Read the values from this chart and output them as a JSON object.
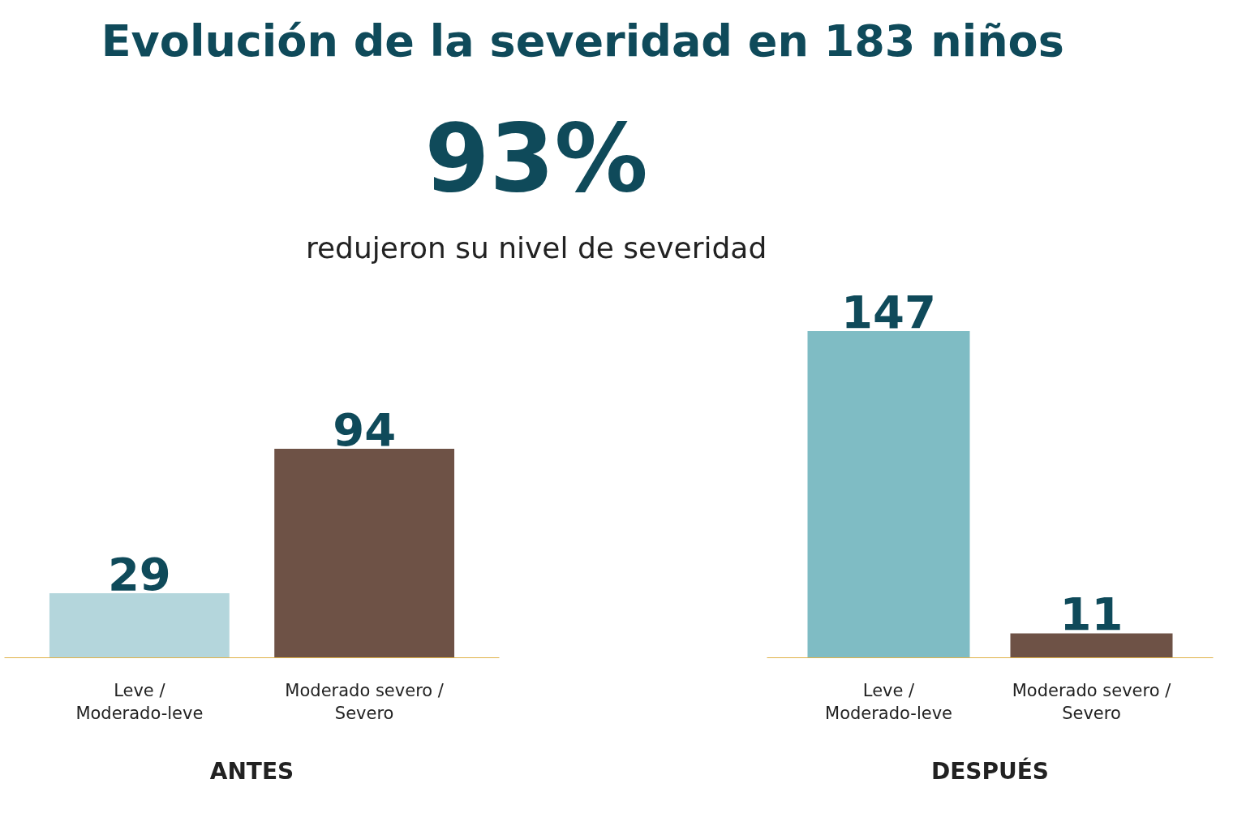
{
  "chart_data": [
    {
      "type": "bar",
      "title": "Evolución de la severidad en 183 niños",
      "annotations": [
        "93%",
        "redujeron su nivel de severidad"
      ],
      "categories": [
        "Leve / Moderado-leve",
        "Moderado severo / Severo"
      ],
      "values": [
        29,
        94
      ],
      "colors": [
        "#b4d6dc",
        "#6e5246"
      ],
      "data_labels": true,
      "xlabel": "ANTES"
    },
    {
      "type": "bar",
      "categories": [
        "Leve / Moderado-leve",
        "Moderado severo / Severo"
      ],
      "values": [
        147,
        11
      ],
      "colors": [
        "#7fbcc4",
        "#6e5246"
      ],
      "data_labels": true,
      "xlabel": "DESPUÉS"
    }
  ]
}
